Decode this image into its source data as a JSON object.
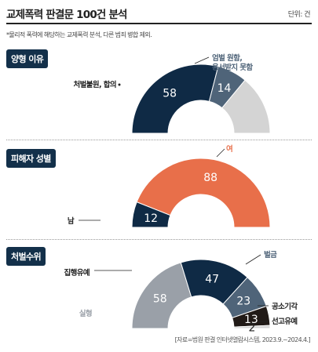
{
  "title": "교제폭력 판결문 100건 분석",
  "unit": "단위: 건",
  "note": "*물리적 폭력에 해당하는 교제폭력 분석, 다른 범죄 병합 제외.",
  "source": "[자료=법원 판결 인터넷열람시스템, 2023.9.~2024.4.]",
  "colors": {
    "navy": "#0f2a45",
    "slate": "#4f6479",
    "gray": "#d4d4d4",
    "orange": "#e86f4a",
    "black": "#211a17",
    "lightgray": "#9aa0a8"
  },
  "chart_data": [
    {
      "type": "pie",
      "title": "양형 이유",
      "categories": [
        "처벌불원, 합의",
        "엄벌 원함, 용서받지 못함",
        ""
      ],
      "values": [
        58,
        14,
        28
      ],
      "labels": [
        "58",
        "14",
        ""
      ],
      "names": [
        "처벌불원, 합의",
        "엄벌 원함,\n용서받지 못함",
        ""
      ],
      "colors": [
        "#0f2a45",
        "#4f6479",
        "#d4d4d4"
      ]
    },
    {
      "type": "pie",
      "title": "피해자 성별",
      "categories": [
        "남",
        "여"
      ],
      "values": [
        12,
        88
      ],
      "labels": [
        "12",
        "88"
      ],
      "names": [
        "남",
        "여"
      ],
      "colors": [
        "#0f2a45",
        "#e86f4a"
      ]
    },
    {
      "type": "pie",
      "title": "처벌수위",
      "categories": [
        "실형",
        "집행유예",
        "벌금",
        "공소기각",
        "선고유예"
      ],
      "values": [
        58,
        47,
        23,
        13,
        2
      ],
      "labels": [
        "58",
        "47",
        "23",
        "13",
        "2"
      ],
      "names": [
        "실형",
        "집행유예",
        "벌금",
        "공소기각",
        "선고유예"
      ],
      "colors": [
        "#9aa0a8",
        "#0f2a45",
        "#4f6479",
        "#211a17",
        "#d4d4d4"
      ]
    }
  ]
}
